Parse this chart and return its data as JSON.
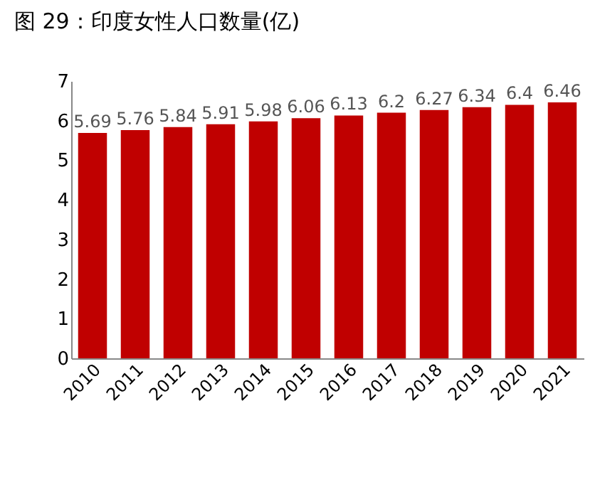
{
  "chart_data": {
    "type": "bar",
    "title": "图 29：印度女性人口数量(亿)",
    "categories": [
      "2010",
      "2011",
      "2012",
      "2013",
      "2014",
      "2015",
      "2016",
      "2017",
      "2018",
      "2019",
      "2020",
      "2021"
    ],
    "values": [
      5.69,
      5.76,
      5.84,
      5.91,
      5.98,
      6.06,
      6.13,
      6.2,
      6.27,
      6.34,
      6.4,
      6.46
    ],
    "color": "#c00000",
    "ylim": [
      0,
      7
    ],
    "yticks": [
      0,
      1,
      2,
      3,
      4,
      5,
      6,
      7
    ],
    "grid": false,
    "data_labels": true
  }
}
